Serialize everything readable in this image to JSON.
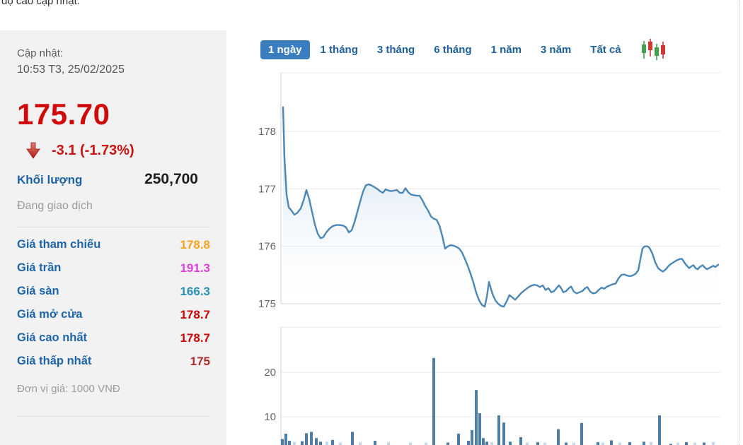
{
  "top_note": "độ cao cập nhật.",
  "quote_panel": {
    "update_label": "Cập nhật:",
    "update_time": "10:53 T3, 25/02/2025",
    "price": "175.70",
    "change": "-3.1 (-1.73%)",
    "volume_label": "Khối lượng",
    "volume_value": "250,700",
    "status": "Đang giao dịch",
    "rows": [
      {
        "label": "Giá tham chiếu",
        "value": "178.8",
        "color": "#f5a31a"
      },
      {
        "label": "Giá trần",
        "value": "191.3",
        "color": "#df3fd8"
      },
      {
        "label": "Giá sàn",
        "value": "166.3",
        "color": "#2693b4"
      },
      {
        "label": "Giá mở cửa",
        "value": "178.7",
        "color": "#cc0000"
      },
      {
        "label": "Giá cao nhất",
        "value": "178.7",
        "color": "#cc0000"
      },
      {
        "label": "Giá thấp nhất",
        "value": "175",
        "color": "#b02b2b"
      }
    ],
    "unit_note": "Đơn vị giá: 1000 VNĐ"
  },
  "range_tabs": [
    {
      "label": "1 ngày",
      "active": true
    },
    {
      "label": "1 tháng",
      "active": false
    },
    {
      "label": "3 tháng",
      "active": false
    },
    {
      "label": "6 tháng",
      "active": false
    },
    {
      "label": "1 năm",
      "active": false
    },
    {
      "label": "3 năm",
      "active": false
    },
    {
      "label": "Tất cả",
      "active": false
    }
  ],
  "colors": {
    "accent_blue": "#3b7ec0",
    "tab_text": "#1e5f9e",
    "line": "#4c87b5",
    "area_top": "#a9cbe8",
    "bar": "#4d7ea8",
    "bar_light": "#c3d8ea",
    "grid": "#e7e7e7",
    "axis": "#d0d0d0",
    "tick_text": "#666666",
    "candle_green": "#44a04c",
    "candle_red": "#cc3b33",
    "price_red": "#cf0a0a"
  },
  "chart_data": {
    "type": "area",
    "title": "",
    "price_pane": {
      "yticks": [
        178,
        177,
        176,
        175
      ],
      "ylim": [
        174.9,
        178.5
      ],
      "grid": true,
      "points": [
        [
          400,
          178.42
        ],
        [
          402,
          177.55
        ],
        [
          405,
          176.9
        ],
        [
          408,
          176.68
        ],
        [
          412,
          176.62
        ],
        [
          416,
          176.55
        ],
        [
          420,
          176.58
        ],
        [
          425,
          176.66
        ],
        [
          429,
          176.8
        ],
        [
          433,
          176.98
        ],
        [
          437,
          176.82
        ],
        [
          441,
          176.6
        ],
        [
          445,
          176.38
        ],
        [
          449,
          176.22
        ],
        [
          453,
          176.14
        ],
        [
          457,
          176.16
        ],
        [
          461,
          176.24
        ],
        [
          465,
          176.3
        ],
        [
          470,
          176.35
        ],
        [
          475,
          176.37
        ],
        [
          480,
          176.37
        ],
        [
          485,
          176.36
        ],
        [
          489,
          176.33
        ],
        [
          493,
          176.24
        ],
        [
          497,
          176.28
        ],
        [
          501,
          176.42
        ],
        [
          505,
          176.6
        ],
        [
          509,
          176.78
        ],
        [
          513,
          176.95
        ],
        [
          517,
          177.06
        ],
        [
          521,
          177.08
        ],
        [
          525,
          177.06
        ],
        [
          529,
          177.03
        ],
        [
          533,
          177.0
        ],
        [
          537,
          176.96
        ],
        [
          541,
          176.93
        ],
        [
          545,
          176.99
        ],
        [
          549,
          176.97
        ],
        [
          553,
          176.96
        ],
        [
          557,
          176.97
        ],
        [
          561,
          176.98
        ],
        [
          565,
          176.93
        ],
        [
          569,
          176.93
        ],
        [
          573,
          177.01
        ],
        [
          577,
          176.94
        ],
        [
          581,
          176.9
        ],
        [
          585,
          176.89
        ],
        [
          589,
          176.88
        ],
        [
          593,
          176.88
        ],
        [
          597,
          176.8
        ],
        [
          601,
          176.7
        ],
        [
          605,
          176.62
        ],
        [
          609,
          176.52
        ],
        [
          613,
          176.48
        ],
        [
          617,
          176.46
        ],
        [
          621,
          176.36
        ],
        [
          625,
          176.18
        ],
        [
          629,
          175.96
        ],
        [
          633,
          176.0
        ],
        [
          637,
          176.02
        ],
        [
          641,
          176.01
        ],
        [
          645,
          175.99
        ],
        [
          649,
          175.96
        ],
        [
          653,
          175.89
        ],
        [
          657,
          175.78
        ],
        [
          661,
          175.66
        ],
        [
          665,
          175.52
        ],
        [
          669,
          175.37
        ],
        [
          673,
          175.19
        ],
        [
          677,
          175.06
        ],
        [
          681,
          174.98
        ],
        [
          685,
          174.95
        ],
        [
          688,
          175.12
        ],
        [
          691,
          175.38
        ],
        [
          694,
          175.25
        ],
        [
          697,
          175.14
        ],
        [
          700,
          175.06
        ],
        [
          704,
          175.0
        ],
        [
          708,
          174.96
        ],
        [
          712,
          174.95
        ],
        [
          716,
          175.04
        ],
        [
          720,
          175.15
        ],
        [
          724,
          175.11
        ],
        [
          728,
          175.07
        ],
        [
          732,
          175.12
        ],
        [
          736,
          175.18
        ],
        [
          740,
          175.22
        ],
        [
          745,
          175.27
        ],
        [
          750,
          175.31
        ],
        [
          755,
          175.33
        ],
        [
          759,
          175.32
        ],
        [
          763,
          175.29
        ],
        [
          767,
          175.32
        ],
        [
          771,
          175.24
        ],
        [
          775,
          175.27
        ],
        [
          779,
          175.2
        ],
        [
          783,
          175.22
        ],
        [
          787,
          175.28
        ],
        [
          790,
          175.32
        ],
        [
          793,
          175.27
        ],
        [
          796,
          175.2
        ],
        [
          800,
          175.22
        ],
        [
          804,
          175.27
        ],
        [
          807,
          175.3
        ],
        [
          811,
          175.21
        ],
        [
          815,
          175.18
        ],
        [
          819,
          175.2
        ],
        [
          823,
          175.22
        ],
        [
          827,
          175.27
        ],
        [
          830,
          175.29
        ],
        [
          834,
          175.21
        ],
        [
          838,
          175.18
        ],
        [
          842,
          175.19
        ],
        [
          846,
          175.24
        ],
        [
          850,
          175.28
        ],
        [
          854,
          175.26
        ],
        [
          858,
          175.3
        ],
        [
          862,
          175.32
        ],
        [
          866,
          175.34
        ],
        [
          870,
          175.35
        ],
        [
          874,
          175.44
        ],
        [
          878,
          175.5
        ],
        [
          882,
          175.51
        ],
        [
          886,
          175.49
        ],
        [
          890,
          175.48
        ],
        [
          894,
          175.49
        ],
        [
          898,
          175.52
        ],
        [
          902,
          175.58
        ],
        [
          905,
          175.78
        ],
        [
          908,
          175.96
        ],
        [
          911,
          176.0
        ],
        [
          915,
          176.0
        ],
        [
          918,
          175.97
        ],
        [
          922,
          175.87
        ],
        [
          926,
          175.72
        ],
        [
          930,
          175.62
        ],
        [
          934,
          175.58
        ],
        [
          937,
          175.56
        ],
        [
          941,
          175.6
        ],
        [
          945,
          175.66
        ],
        [
          949,
          175.7
        ],
        [
          953,
          175.73
        ],
        [
          957,
          175.76
        ],
        [
          961,
          175.78
        ],
        [
          964,
          175.78
        ],
        [
          967,
          175.72
        ],
        [
          970,
          175.67
        ],
        [
          974,
          175.62
        ],
        [
          977,
          175.65
        ],
        [
          980,
          175.67
        ],
        [
          983,
          175.62
        ],
        [
          986,
          175.6
        ],
        [
          989,
          175.64
        ],
        [
          993,
          175.67
        ],
        [
          996,
          175.63
        ],
        [
          999,
          175.6
        ],
        [
          1002,
          175.62
        ],
        [
          1005,
          175.64
        ],
        [
          1008,
          175.66
        ],
        [
          1011,
          175.64
        ],
        [
          1015,
          175.68
        ]
      ]
    },
    "volume_pane": {
      "yticks": [
        20,
        10
      ],
      "grid": true,
      "bars": [
        [
          399,
          5.0
        ],
        [
          404,
          6.2
        ],
        [
          409,
          4.6
        ],
        [
          427,
          4.5
        ],
        [
          433,
          6.3
        ],
        [
          440,
          6.6
        ],
        [
          447,
          5.2
        ],
        [
          453,
          4.4
        ],
        [
          470,
          4.8
        ],
        [
          498,
          6.6
        ],
        [
          530,
          4.6
        ],
        [
          613,
          23.2
        ],
        [
          633,
          4.2
        ],
        [
          648,
          6.2
        ],
        [
          662,
          4.6
        ],
        [
          667,
          7.0
        ],
        [
          673,
          16.0
        ],
        [
          678,
          10.8
        ],
        [
          683,
          5.2
        ],
        [
          688,
          4.4
        ],
        [
          705,
          10.3
        ],
        [
          712,
          8.7
        ],
        [
          721,
          4.4
        ],
        [
          736,
          5.4
        ],
        [
          760,
          4.3
        ],
        [
          789,
          7.2
        ],
        [
          800,
          4.2
        ],
        [
          822,
          8.6
        ],
        [
          845,
          4.3
        ],
        [
          864,
          4.7
        ],
        [
          890,
          4.3
        ],
        [
          910,
          4.4
        ],
        [
          932,
          10.3
        ],
        [
          948,
          3.9
        ],
        [
          970,
          4.3
        ],
        [
          995,
          4.2
        ]
      ],
      "light_bars": [
        [
          416,
          4.3
        ],
        [
          462,
          4.4
        ],
        [
          481,
          4.2
        ],
        [
          509,
          4.3
        ],
        [
          549,
          4.3
        ],
        [
          580,
          4.2
        ],
        [
          602,
          4.2
        ],
        [
          695,
          4.3
        ],
        [
          745,
          4.2
        ],
        [
          770,
          4.2
        ],
        [
          811,
          4.2
        ],
        [
          852,
          4.2
        ],
        [
          876,
          4.2
        ],
        [
          920,
          4.3
        ],
        [
          958,
          4.2
        ],
        [
          982,
          4.2
        ],
        [
          1008,
          4.3
        ]
      ]
    }
  }
}
